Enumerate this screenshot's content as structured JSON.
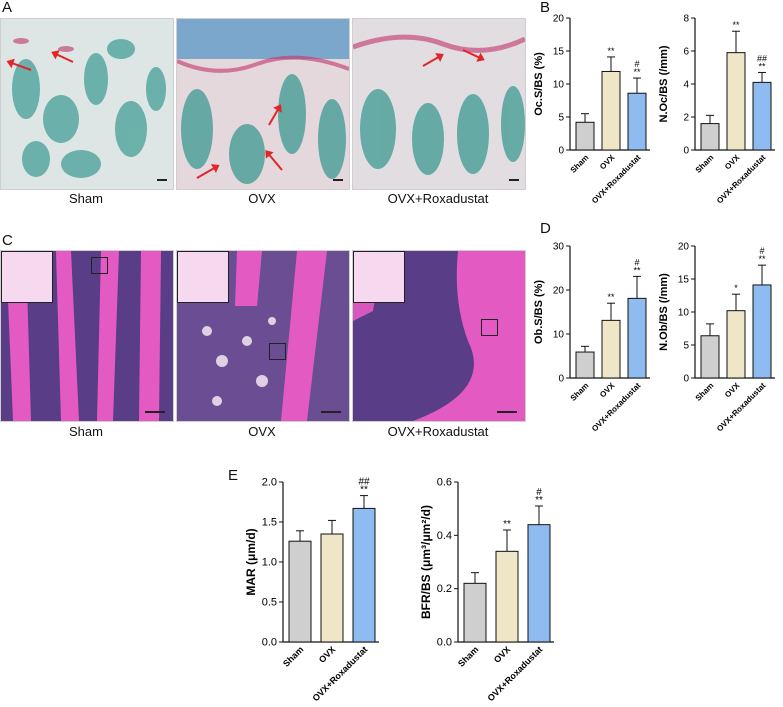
{
  "panels": {
    "A": "A",
    "B": "B",
    "C": "C",
    "D": "D",
    "E": "E"
  },
  "micro_a_labels": [
    "Sham",
    "OVX",
    "OVX+Roxadustat"
  ],
  "micro_c_labels": [
    "Sham",
    "OVX",
    "OVX+Roxadustat"
  ],
  "colors": {
    "sham": "#cfcfcf",
    "ovx": "#efe6c7",
    "roxadustat": "#8fbcf0",
    "trap_background": "#dde6e4",
    "trap_cells": "#3c9a92",
    "trap_stain": "#c2336b",
    "he_marrow": "#5a3d87",
    "he_bone": "#e35bc2",
    "he_background": "#f6d9ef"
  },
  "chart_data": [
    {
      "id": "oc_s_bs",
      "type": "bar",
      "categories": [
        "Sham",
        "OVX",
        "OVX+Roxadustat"
      ],
      "values": [
        4.2,
        11.9,
        8.6
      ],
      "errors": [
        1.3,
        2.2,
        2.3
      ],
      "significance": [
        [
          "",
          ""
        ],
        [
          "**",
          ""
        ],
        [
          "**",
          "#"
        ]
      ],
      "ylabel": "Oc.S/BS (%)",
      "ylim": [
        0,
        20
      ],
      "yticks": [
        0,
        5,
        10,
        15,
        20
      ]
    },
    {
      "id": "n_oc_bs",
      "type": "bar",
      "categories": [
        "Sham",
        "OVX",
        "OVX+Roxadustat"
      ],
      "values": [
        1.6,
        5.9,
        4.1
      ],
      "errors": [
        0.5,
        1.3,
        0.6
      ],
      "significance": [
        [
          "",
          ""
        ],
        [
          "**",
          ""
        ],
        [
          "**",
          "##"
        ]
      ],
      "ylabel": "N.Oc/BS (/mm)",
      "ylim": [
        0,
        8
      ],
      "yticks": [
        0,
        2,
        4,
        6,
        8
      ]
    },
    {
      "id": "ob_s_bs",
      "type": "bar",
      "categories": [
        "Sham",
        "OVX",
        "OVX+Roxadustat"
      ],
      "values": [
        5.9,
        13.1,
        18.1
      ],
      "errors": [
        1.3,
        3.9,
        5.0
      ],
      "significance": [
        [
          "",
          ""
        ],
        [
          "**",
          ""
        ],
        [
          "**",
          "#"
        ]
      ],
      "ylabel": "Ob.S/BS (%)",
      "ylim": [
        0,
        30
      ],
      "yticks": [
        0,
        10,
        20,
        30
      ]
    },
    {
      "id": "n_ob_bs",
      "type": "bar",
      "categories": [
        "Sham",
        "OVX",
        "OVX+Roxadustat"
      ],
      "values": [
        6.4,
        10.2,
        14.1
      ],
      "errors": [
        1.8,
        2.5,
        3.0
      ],
      "significance": [
        [
          "",
          ""
        ],
        [
          "*",
          ""
        ],
        [
          "**",
          "#"
        ]
      ],
      "ylabel": "N.Ob/BS (/mm)",
      "ylim": [
        0,
        20
      ],
      "yticks": [
        0,
        5,
        10,
        15,
        20
      ]
    },
    {
      "id": "mar",
      "type": "bar",
      "categories": [
        "Sham",
        "OVX",
        "OVX+Roxadustat"
      ],
      "values": [
        1.26,
        1.35,
        1.67
      ],
      "errors": [
        0.13,
        0.17,
        0.16
      ],
      "significance": [
        [
          "",
          ""
        ],
        [
          "",
          ""
        ],
        [
          "**",
          "##"
        ]
      ],
      "ylabel": "MAR (μm/d)",
      "ylim": [
        0,
        2.0
      ],
      "yticks": [
        "0.0",
        "0.5",
        "1.0",
        "1.5",
        "2.0"
      ]
    },
    {
      "id": "bfr_bs",
      "type": "bar",
      "categories": [
        "Sham",
        "OVX",
        "OVX+Roxadustat"
      ],
      "values": [
        0.22,
        0.34,
        0.44
      ],
      "errors": [
        0.04,
        0.08,
        0.07
      ],
      "significance": [
        [
          "",
          ""
        ],
        [
          "**",
          ""
        ],
        [
          "**",
          "#"
        ]
      ],
      "ylabel": "BFR/BS (μm³/μm²/d)",
      "ylim": [
        0,
        0.6
      ],
      "yticks": [
        "0.0",
        "0.2",
        "0.4",
        "0.6"
      ]
    }
  ]
}
